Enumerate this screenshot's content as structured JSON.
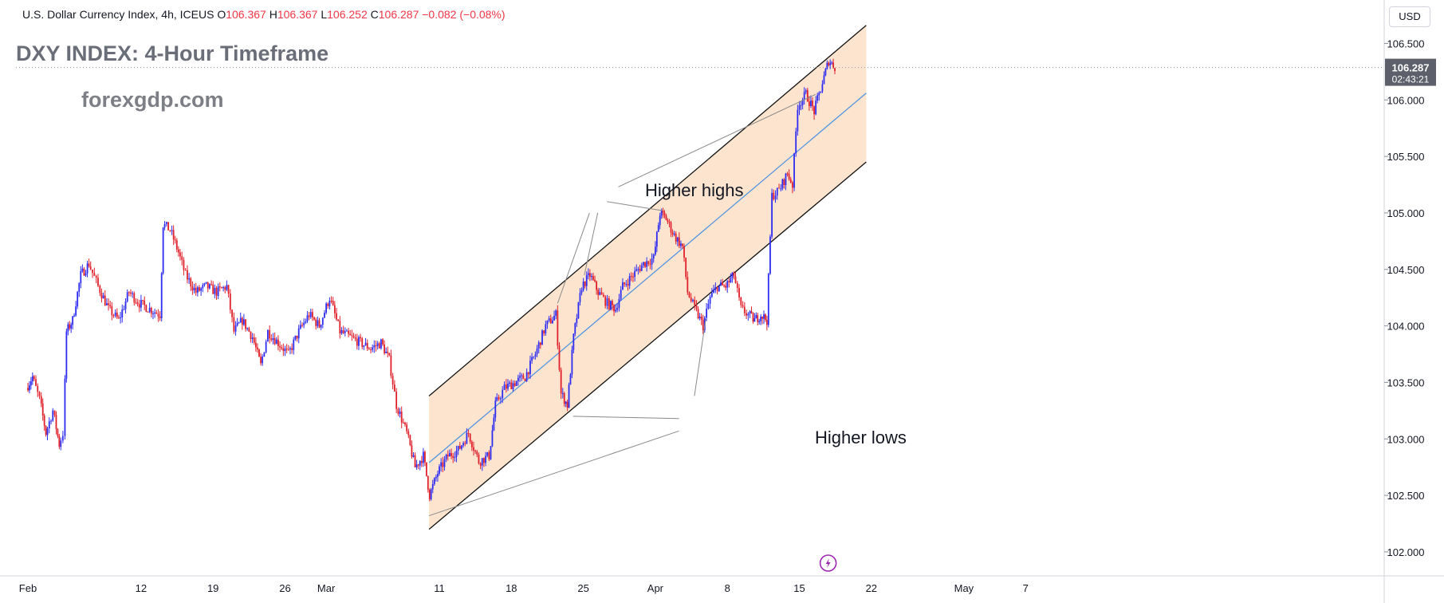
{
  "header": {
    "symbol_name": "U.S. Dollar Currency Index, 4h, ICEUS",
    "open_label": "O",
    "open": "106.367",
    "high_label": "H",
    "high": "106.367",
    "low_label": "L",
    "low": "106.252",
    "close_label": "C",
    "close": "106.287",
    "change": "−0.082 (−0.08%)"
  },
  "overlay": {
    "title": "DXY INDEX: 4-Hour Timeframe",
    "website": "forexgdp.com",
    "higher_highs_label": "Higher highs",
    "higher_lows_label": "Higher lows"
  },
  "price_scale": {
    "currency": "USD",
    "last_price": "106.287",
    "countdown": "02:43:21"
  },
  "colors": {
    "up": "#2c2cf2",
    "down": "#e0202a",
    "channel_fill": "#fde4cf",
    "midline": "#4a90e2",
    "channel_line": "#111111",
    "grid_axis": "#d1d4dc"
  },
  "chart_data": {
    "type": "candlestick",
    "timeframe": "4h",
    "x_start": "Feb 1",
    "x_end": "May 10",
    "ylim": [
      101.95,
      106.75
    ],
    "y_ticks": [
      "106.500",
      "106.000",
      "105.500",
      "105.000",
      "104.500",
      "104.000",
      "103.500",
      "103.000",
      "102.500",
      "102.000"
    ],
    "x_ticks": [
      {
        "label": "Feb",
        "day": 1
      },
      {
        "label": "12",
        "day": 12
      },
      {
        "label": "19",
        "day": 19
      },
      {
        "label": "26",
        "day": 26
      },
      {
        "label": "Mar",
        "day": 30
      },
      {
        "label": "11",
        "day": 41
      },
      {
        "label": "18",
        "day": 48
      },
      {
        "label": "25",
        "day": 55
      },
      {
        "label": "Apr",
        "day": 62
      },
      {
        "label": "8",
        "day": 69
      },
      {
        "label": "15",
        "day": 76
      },
      {
        "label": "22",
        "day": 83
      },
      {
        "label": "May",
        "day": 92
      },
      {
        "label": "7",
        "day": 98
      }
    ],
    "price_path": [
      {
        "day": 1.0,
        "price": 103.45
      },
      {
        "day": 1.6,
        "price": 103.55
      },
      {
        "day": 2.3,
        "price": 103.35
      },
      {
        "day": 2.9,
        "price": 103.05
      },
      {
        "day": 3.6,
        "price": 103.25
      },
      {
        "day": 4.2,
        "price": 102.95
      },
      {
        "day": 4.6,
        "price": 103.05
      },
      {
        "day": 4.9,
        "price": 103.95
      },
      {
        "day": 5.5,
        "price": 104.05
      },
      {
        "day": 6.3,
        "price": 104.45
      },
      {
        "day": 7.1,
        "price": 104.55
      },
      {
        "day": 8.0,
        "price": 104.35
      },
      {
        "day": 9.0,
        "price": 104.15
      },
      {
        "day": 10.0,
        "price": 104.05
      },
      {
        "day": 11.0,
        "price": 104.3
      },
      {
        "day": 12.0,
        "price": 104.2
      },
      {
        "day": 13.0,
        "price": 104.15
      },
      {
        "day": 14.0,
        "price": 104.1
      },
      {
        "day": 14.3,
        "price": 104.9
      },
      {
        "day": 15.0,
        "price": 104.85
      },
      {
        "day": 15.8,
        "price": 104.65
      },
      {
        "day": 16.5,
        "price": 104.45
      },
      {
        "day": 17.5,
        "price": 104.3
      },
      {
        "day": 18.5,
        "price": 104.35
      },
      {
        "day": 19.5,
        "price": 104.3
      },
      {
        "day": 20.5,
        "price": 104.35
      },
      {
        "day": 21.2,
        "price": 103.95
      },
      {
        "day": 22.0,
        "price": 104.05
      },
      {
        "day": 23.0,
        "price": 103.9
      },
      {
        "day": 23.8,
        "price": 103.65
      },
      {
        "day": 24.5,
        "price": 103.95
      },
      {
        "day": 25.5,
        "price": 103.85
      },
      {
        "day": 26.5,
        "price": 103.75
      },
      {
        "day": 27.5,
        "price": 103.95
      },
      {
        "day": 28.5,
        "price": 104.1
      },
      {
        "day": 29.5,
        "price": 104.0
      },
      {
        "day": 30.5,
        "price": 104.25
      },
      {
        "day": 31.5,
        "price": 103.95
      },
      {
        "day": 32.5,
        "price": 103.9
      },
      {
        "day": 33.5,
        "price": 103.85
      },
      {
        "day": 34.5,
        "price": 103.8
      },
      {
        "day": 35.5,
        "price": 103.85
      },
      {
        "day": 36.3,
        "price": 103.7
      },
      {
        "day": 37.0,
        "price": 103.3
      },
      {
        "day": 38.0,
        "price": 103.05
      },
      {
        "day": 38.8,
        "price": 102.75
      },
      {
        "day": 39.6,
        "price": 102.85
      },
      {
        "day": 40.2,
        "price": 102.5
      },
      {
        "day": 41.0,
        "price": 102.7
      },
      {
        "day": 42.0,
        "price": 102.85
      },
      {
        "day": 43.0,
        "price": 102.9
      },
      {
        "day": 44.0,
        "price": 103.05
      },
      {
        "day": 45.0,
        "price": 102.8
      },
      {
        "day": 46.0,
        "price": 102.85
      },
      {
        "day": 46.6,
        "price": 103.3
      },
      {
        "day": 47.5,
        "price": 103.45
      },
      {
        "day": 48.5,
        "price": 103.5
      },
      {
        "day": 49.5,
        "price": 103.55
      },
      {
        "day": 50.5,
        "price": 103.75
      },
      {
        "day": 51.5,
        "price": 104.0
      },
      {
        "day": 52.5,
        "price": 104.1
      },
      {
        "day": 53.0,
        "price": 103.4
      },
      {
        "day": 53.6,
        "price": 103.3
      },
      {
        "day": 54.2,
        "price": 103.9
      },
      {
        "day": 55.0,
        "price": 104.35
      },
      {
        "day": 55.8,
        "price": 104.45
      },
      {
        "day": 56.6,
        "price": 104.3
      },
      {
        "day": 57.5,
        "price": 104.2
      },
      {
        "day": 58.3,
        "price": 104.15
      },
      {
        "day": 59.0,
        "price": 104.35
      },
      {
        "day": 60.0,
        "price": 104.45
      },
      {
        "day": 61.0,
        "price": 104.55
      },
      {
        "day": 62.0,
        "price": 104.6
      },
      {
        "day": 62.6,
        "price": 105.0
      },
      {
        "day": 63.2,
        "price": 104.95
      },
      {
        "day": 64.0,
        "price": 104.8
      },
      {
        "day": 64.8,
        "price": 104.7
      },
      {
        "day": 65.3,
        "price": 104.3
      },
      {
        "day": 66.0,
        "price": 104.15
      },
      {
        "day": 66.8,
        "price": 104.0
      },
      {
        "day": 67.5,
        "price": 104.25
      },
      {
        "day": 68.2,
        "price": 104.35
      },
      {
        "day": 69.0,
        "price": 104.35
      },
      {
        "day": 69.8,
        "price": 104.45
      },
      {
        "day": 70.5,
        "price": 104.15
      },
      {
        "day": 71.2,
        "price": 104.1
      },
      {
        "day": 71.8,
        "price": 104.05
      },
      {
        "day": 72.4,
        "price": 104.1
      },
      {
        "day": 73.0,
        "price": 104.05
      },
      {
        "day": 73.5,
        "price": 105.15
      },
      {
        "day": 74.2,
        "price": 105.2
      },
      {
        "day": 75.0,
        "price": 105.35
      },
      {
        "day": 75.5,
        "price": 105.25
      },
      {
        "day": 76.0,
        "price": 105.95
      },
      {
        "day": 76.8,
        "price": 106.05
      },
      {
        "day": 77.6,
        "price": 105.9
      },
      {
        "day": 78.4,
        "price": 106.15
      },
      {
        "day": 79.0,
        "price": 106.35
      },
      {
        "day": 79.6,
        "price": 106.29
      }
    ],
    "channel": {
      "upper": {
        "start": {
          "day": 40.0,
          "price": 103.38
        },
        "end": {
          "day": 82.5,
          "price": 106.66
        }
      },
      "lower": {
        "start": {
          "day": 40.0,
          "price": 102.2
        },
        "end": {
          "day": 82.5,
          "price": 105.45
        }
      },
      "mid": {
        "start": {
          "day": 40.0,
          "price": 102.79
        },
        "end": {
          "day": 82.5,
          "price": 106.06
        }
      }
    },
    "annotation_lines": [
      {
        "from": {
          "day": 58.4,
          "price": 105.23
        },
        "to": {
          "day": 77.6,
          "price": 106.05
        }
      },
      {
        "from": {
          "day": 57.3,
          "price": 105.1
        },
        "to": {
          "day": 62.7,
          "price": 105.02
        }
      },
      {
        "from": {
          "day": 55.6,
          "price": 105.0
        },
        "to": {
          "day": 52.5,
          "price": 104.2
        }
      },
      {
        "from": {
          "day": 56.4,
          "price": 105.0
        },
        "to": {
          "day": 55.1,
          "price": 104.45
        }
      },
      {
        "from": {
          "day": 64.3,
          "price": 103.18
        },
        "to": {
          "day": 54.0,
          "price": 103.2
        }
      },
      {
        "from": {
          "day": 64.3,
          "price": 103.07
        },
        "to": {
          "day": 40.0,
          "price": 102.32
        }
      },
      {
        "from": {
          "day": 65.8,
          "price": 103.38
        },
        "to": {
          "day": 66.9,
          "price": 104.06
        }
      }
    ]
  }
}
